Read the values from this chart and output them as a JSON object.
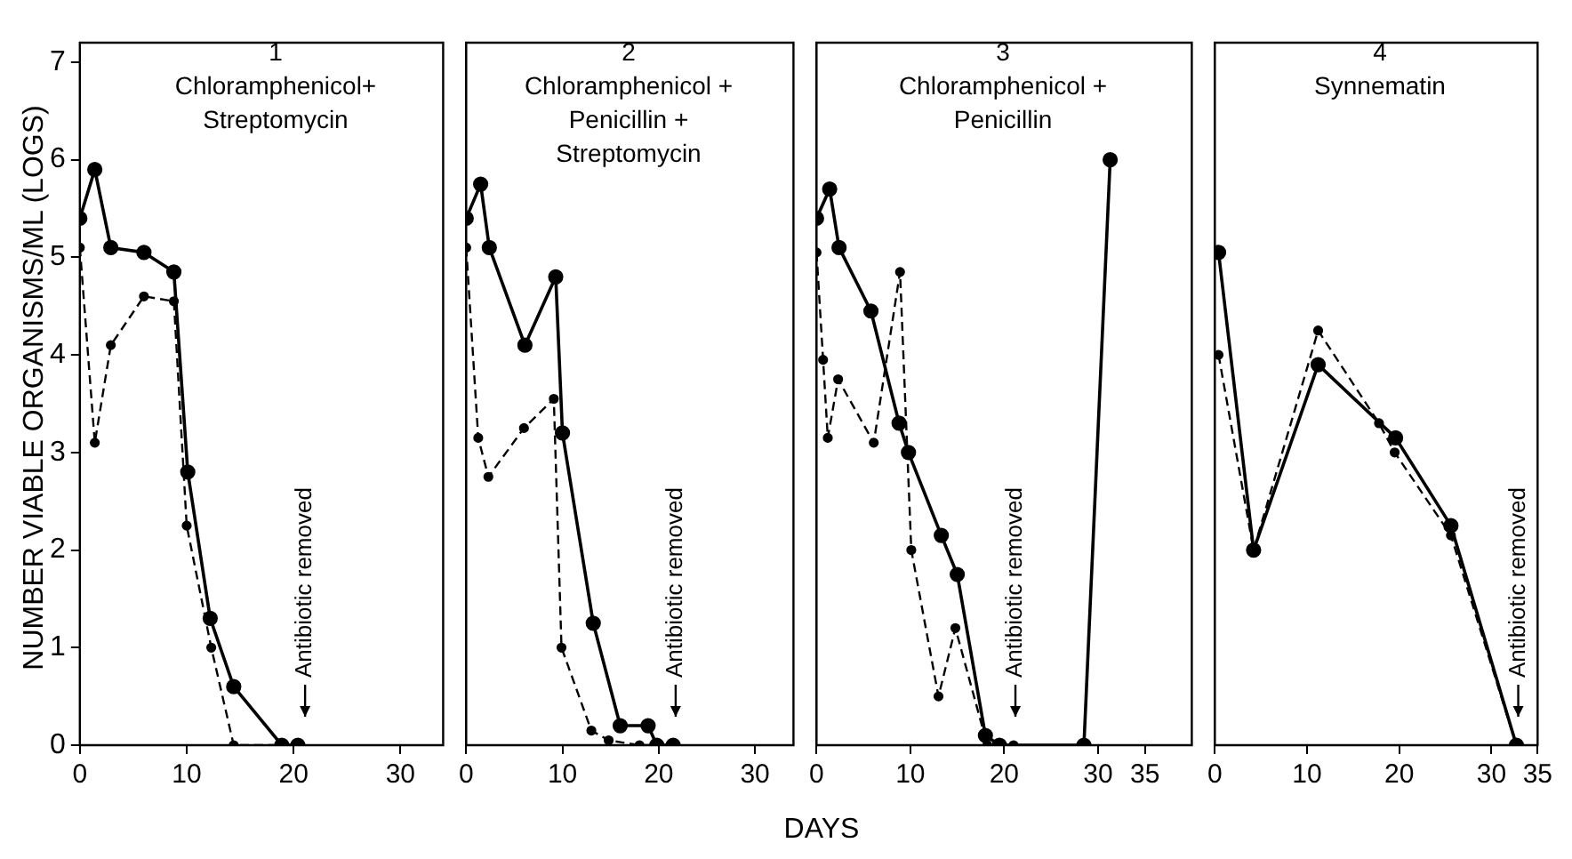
{
  "chart_data": [
    {
      "type": "line",
      "title": "1",
      "subtitle": "Chloramphenicol+ Streptomycin",
      "ylabel": "NUMBER VIABLE ORGANISMS/ML (LOGS)",
      "xlim": [
        0,
        34
      ],
      "xticks": [
        0,
        10,
        20,
        30
      ],
      "ylim": [
        0,
        7.2
      ],
      "yticks": [
        0,
        1,
        2,
        3,
        4,
        5,
        6,
        7
      ],
      "marker": "circle",
      "series": [
        {
          "color": "#000000",
          "line_style": "solid",
          "x": [
            0,
            1.4,
            2.9,
            6,
            8.8,
            10.1,
            12.2,
            14.4,
            18.9,
            20.4
          ],
          "values": [
            5.4,
            5.9,
            5.1,
            5.05,
            4.85,
            2.8,
            1.3,
            0.6,
            0,
            0
          ]
        },
        {
          "color": "#000000",
          "line_style": "dashed",
          "x": [
            0,
            1.4,
            2.9,
            6,
            8.8,
            10,
            12.3,
            14.4,
            18.9,
            20.4
          ],
          "values": [
            5.1,
            3.1,
            4.1,
            4.6,
            4.55,
            2.25,
            1,
            0,
            0,
            0
          ]
        }
      ],
      "annotations": [
        "Antibiotic removed"
      ]
    },
    {
      "type": "line",
      "title": "2",
      "subtitle": "Chloramphenicol + Penicillin + Streptomycin",
      "xlim": [
        0,
        34
      ],
      "xticks": [
        0,
        10,
        20,
        30
      ],
      "ylim": [
        0,
        7.2
      ],
      "yticks": [
        0,
        1,
        2,
        3,
        4,
        5,
        6,
        7
      ],
      "tick_labels": "x",
      "marker": "circle",
      "series": [
        {
          "color": "#000000",
          "line_style": "solid",
          "x": [
            0,
            1.5,
            2.4,
            6.1,
            9.3,
            10,
            13.2,
            16,
            18.9,
            19.8,
            21.5
          ],
          "values": [
            5.4,
            5.75,
            5.1,
            4.1,
            4.8,
            3.2,
            1.25,
            0.2,
            0.2,
            0,
            0
          ]
        },
        {
          "color": "#000000",
          "line_style": "dashed",
          "x": [
            0,
            1.25,
            2.3,
            6,
            9.1,
            9.9,
            13,
            14.8,
            18,
            19.8,
            21.5
          ],
          "values": [
            5.1,
            3.15,
            2.75,
            3.25,
            3.55,
            1,
            0.15,
            0.05,
            0,
            0,
            0
          ]
        }
      ],
      "annotations": [
        "Antibiotic removed"
      ]
    },
    {
      "type": "line",
      "title": "3",
      "subtitle": "Chloramphenicol + Penicillin",
      "xlabel": "DAYS",
      "xlim": [
        0,
        40
      ],
      "xticks": [
        0,
        10,
        20,
        30,
        35
      ],
      "ylim": [
        0,
        7.2
      ],
      "yticks": [
        0,
        1,
        2,
        3,
        4,
        5,
        6,
        7
      ],
      "tick_labels": "x",
      "marker": "circle",
      "series": [
        {
          "color": "#000000",
          "line_style": "solid",
          "x": [
            0,
            1.4,
            2.4,
            5.8,
            8.8,
            9.8,
            13.3,
            15,
            18,
            19.5,
            28.5,
            31.3
          ],
          "values": [
            5.4,
            5.7,
            5.1,
            4.45,
            3.3,
            3,
            2.15,
            1.75,
            0.1,
            0,
            0,
            6
          ]
        },
        {
          "color": "#000000",
          "line_style": "dashed",
          "x": [
            0,
            0.7,
            1.2,
            2.3,
            6.1,
            8.9,
            10.1,
            13,
            14.8,
            18.2,
            21
          ],
          "values": [
            5.05,
            3.95,
            3.15,
            3.75,
            3.1,
            4.85,
            2,
            0.5,
            1.2,
            0,
            0
          ]
        }
      ],
      "annotations": [
        "Antibiotic removed"
      ]
    },
    {
      "type": "line",
      "title": "4",
      "subtitle": "Synnematin",
      "xlim": [
        0,
        35
      ],
      "xticks": [
        0,
        10,
        20,
        30,
        35
      ],
      "ylim": [
        0,
        7.2
      ],
      "yticks": [
        0,
        1,
        2,
        3,
        4,
        5,
        6,
        7
      ],
      "tick_labels": "x",
      "marker": "circle",
      "series": [
        {
          "color": "#000000",
          "line_style": "solid",
          "x": [
            0.4,
            4.2,
            11.2,
            19.6,
            25.6,
            32.7
          ],
          "values": [
            5.05,
            2,
            3.9,
            3.15,
            2.25,
            0
          ]
        },
        {
          "color": "#000000",
          "line_style": "dashed",
          "x": [
            0.4,
            4.2,
            11.2,
            17.8,
            19.5,
            25.6,
            32.7
          ],
          "values": [
            4,
            2,
            4.25,
            3.3,
            3,
            2.15,
            0
          ]
        }
      ],
      "annotations": [
        "Antibiotic removed"
      ]
    }
  ]
}
